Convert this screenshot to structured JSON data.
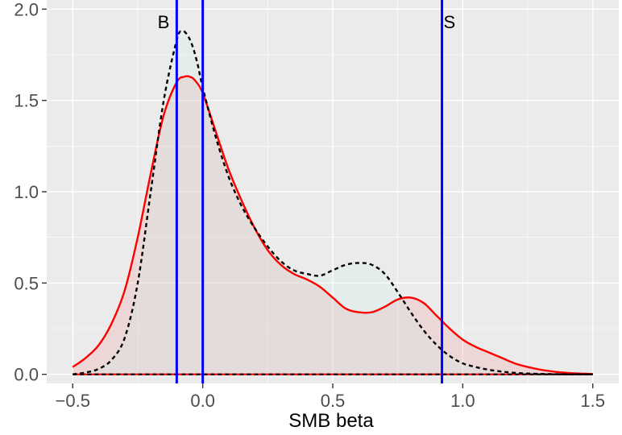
{
  "chart_data": {
    "type": "area",
    "title": "",
    "xlabel": "SMB beta",
    "ylabel": "",
    "xlim": [
      -0.6,
      1.6
    ],
    "ylim": [
      -0.05,
      2.05
    ],
    "x_ticks": [
      -0.5,
      0.0,
      0.5,
      1.0,
      1.5
    ],
    "x_tick_labels": [
      "−0.5",
      "0.0",
      "0.5",
      "1.0",
      "1.5"
    ],
    "y_ticks": [
      0.0,
      0.5,
      1.0,
      1.5,
      2.0
    ],
    "y_tick_labels": [
      "0.0",
      "0.5",
      "1.0",
      "1.5",
      "2.0"
    ],
    "grid": true,
    "legend": "none",
    "background": "#ebebeb",
    "series": [
      {
        "style": "solid",
        "color": "#ff0000",
        "fill": "#f08080",
        "x": [
          -0.5,
          -0.45,
          -0.4,
          -0.35,
          -0.3,
          -0.25,
          -0.2,
          -0.15,
          -0.1,
          -0.07,
          -0.05,
          -0.03,
          0.0,
          0.05,
          0.1,
          0.15,
          0.2,
          0.25,
          0.3,
          0.35,
          0.4,
          0.45,
          0.5,
          0.55,
          0.6,
          0.65,
          0.7,
          0.75,
          0.8,
          0.85,
          0.9,
          0.95,
          1.0,
          1.05,
          1.1,
          1.15,
          1.2,
          1.25,
          1.3,
          1.35,
          1.4,
          1.45,
          1.5
        ],
        "y": [
          0.04,
          0.09,
          0.16,
          0.28,
          0.46,
          0.75,
          1.1,
          1.42,
          1.6,
          1.63,
          1.63,
          1.61,
          1.54,
          1.33,
          1.12,
          0.95,
          0.8,
          0.68,
          0.6,
          0.55,
          0.52,
          0.48,
          0.42,
          0.36,
          0.34,
          0.34,
          0.37,
          0.41,
          0.42,
          0.39,
          0.32,
          0.25,
          0.19,
          0.15,
          0.12,
          0.09,
          0.06,
          0.04,
          0.025,
          0.015,
          0.008,
          0.004,
          0.002
        ]
      },
      {
        "style": "dashed",
        "color": "#000000",
        "fill": "#c8eef0",
        "x": [
          -0.5,
          -0.45,
          -0.4,
          -0.35,
          -0.3,
          -0.25,
          -0.2,
          -0.15,
          -0.1,
          -0.08,
          -0.06,
          -0.04,
          -0.02,
          0.0,
          0.05,
          0.1,
          0.15,
          0.2,
          0.25,
          0.3,
          0.35,
          0.4,
          0.45,
          0.5,
          0.55,
          0.6,
          0.65,
          0.7,
          0.75,
          0.8,
          0.85,
          0.9,
          0.95,
          1.0,
          1.05,
          1.1,
          1.15,
          1.2,
          1.25,
          1.3,
          1.35,
          1.4,
          1.45,
          1.5
        ],
        "y": [
          0.0,
          0.01,
          0.03,
          0.08,
          0.2,
          0.5,
          1.0,
          1.5,
          1.83,
          1.88,
          1.86,
          1.8,
          1.7,
          1.57,
          1.3,
          1.08,
          0.92,
          0.8,
          0.7,
          0.62,
          0.57,
          0.55,
          0.54,
          0.57,
          0.6,
          0.61,
          0.6,
          0.55,
          0.45,
          0.34,
          0.24,
          0.16,
          0.1,
          0.06,
          0.04,
          0.025,
          0.015,
          0.008,
          0.004,
          0.002,
          0.001,
          0.0,
          0.0,
          0.0
        ]
      }
    ],
    "vlines": [
      {
        "x": -0.1,
        "color": "#0000ff",
        "label": "B"
      },
      {
        "x": 0.0,
        "color": "#0000ff",
        "label": ""
      },
      {
        "x": 0.92,
        "color": "#0000ff",
        "label": "S"
      }
    ]
  }
}
